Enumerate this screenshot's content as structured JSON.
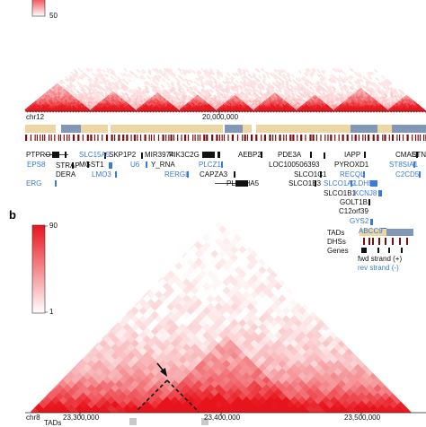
{
  "panel_a": {
    "scale": {
      "min": "",
      "max": "50"
    },
    "chrom": "chr12",
    "tick": "20,000,000",
    "genes_black": [
      {
        "label": "PTPRO"
      },
      {
        "label": "STRAP"
      },
      {
        "label": "DERA"
      },
      {
        "label": "MGST1"
      },
      {
        "label": "SKP1P2"
      },
      {
        "label": "MIR3974"
      },
      {
        "label": "PIK3C2G"
      },
      {
        "label": "Y_RNA"
      },
      {
        "label": "CAPZA3"
      },
      {
        "label": "AEBP2"
      },
      {
        "label": "PLEKHA5"
      },
      {
        "label": "PDE3A"
      },
      {
        "label": "LOC100506393"
      },
      {
        "label": "SLCO1C1"
      },
      {
        "label": "SLCO1B3"
      },
      {
        "label": "IAPP"
      },
      {
        "label": "PYROXD1"
      },
      {
        "label": "SLCO1B1"
      },
      {
        "label": "GOLT1B"
      },
      {
        "label": "C12orf39"
      },
      {
        "label": "CMAS"
      },
      {
        "label": "ETN"
      }
    ],
    "genes_blue": [
      {
        "label": "SLC15A5"
      },
      {
        "label": "EPS8"
      },
      {
        "label": "ERG"
      },
      {
        "label": "LMO3"
      },
      {
        "label": "U6"
      },
      {
        "label": "RERGL"
      },
      {
        "label": "PLCZ1"
      },
      {
        "label": "LDHB"
      },
      {
        "label": "SLCO1A2"
      },
      {
        "label": "KCNJ8"
      },
      {
        "label": "RECQL"
      },
      {
        "label": "GYS2"
      },
      {
        "label": "ABCC9"
      },
      {
        "label": "ST8SIA1"
      },
      {
        "label": "C2CD5"
      }
    ]
  },
  "panel_b": {
    "label": "b",
    "scale": {
      "max": "90",
      "min": "1"
    },
    "legend": {
      "tads": "TADs",
      "dhss": "DHSs",
      "genes": "Genes",
      "fwd": "fwd strand (+)",
      "rev": "rev strand (-)"
    },
    "chrom": "chr8",
    "tads_label": "TADs",
    "ticks": [
      "23,300,000",
      "23,400,000",
      "23,500,000"
    ]
  },
  "colors": {
    "heat_max": "#e8141c",
    "tad_light": "#ecd6a3",
    "tad_dark": "#8398b6",
    "dhs": "#7a0f12",
    "gene_blue": "#3a7bd5"
  }
}
